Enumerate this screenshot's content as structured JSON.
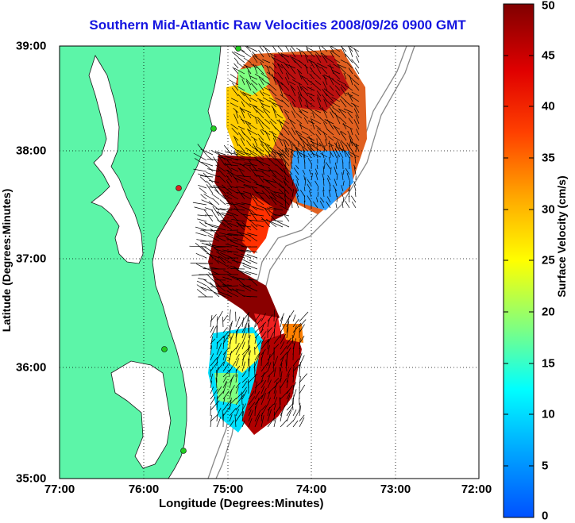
{
  "title": "Southern Mid-Atlantic Raw Velocities 2008/09/26 0900 GMT",
  "axes": {
    "xlabel": "Longitude (Degrees:Minutes)",
    "ylabel": "Latitude (Degrees:Minutes)",
    "xticks": [
      "77:00",
      "76:00",
      "75:00",
      "74:00",
      "73:00",
      "72:00"
    ],
    "yticks": [
      "39:00",
      "38:00",
      "37:00",
      "36:00",
      "35:00"
    ],
    "xlim": [
      -77,
      -72
    ],
    "ylim": [
      35,
      39
    ],
    "grid": "dotted"
  },
  "colorbar": {
    "label": "Surface Velocity (cm/s)",
    "ticks": [
      "50",
      "45",
      "40",
      "35",
      "30",
      "25",
      "20",
      "15",
      "10",
      "5",
      "0"
    ],
    "range": [
      0,
      50
    ],
    "colormap": "jet"
  },
  "colors": {
    "land": "#5cf5a8",
    "title": "#1515e0",
    "stations": "#22cc22",
    "station_alt": "#dd2222"
  }
}
